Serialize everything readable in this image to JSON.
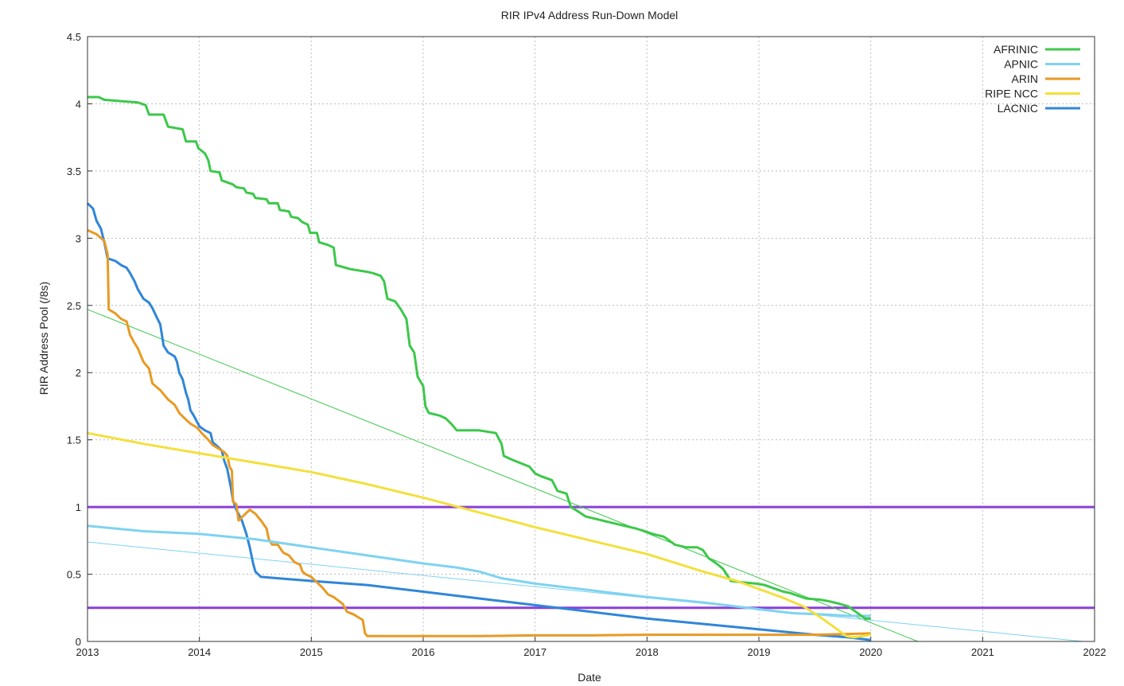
{
  "chart_data": {
    "type": "line",
    "title": "RIR IPv4 Address Run-Down Model",
    "xlabel": "Date",
    "ylabel": "RIR Address Pool (/8s)",
    "xlim": [
      2013,
      2022
    ],
    "ylim": [
      0,
      4.5
    ],
    "x_ticks": [
      "2013",
      "2014",
      "2015",
      "2016",
      "2017",
      "2018",
      "2019",
      "2020",
      "2021",
      "2022"
    ],
    "y_ticks": [
      "0",
      "0.5",
      "1",
      "1.5",
      "2",
      "2.5",
      "3",
      "3.5",
      "4",
      "4.5"
    ],
    "grid": true,
    "legend_position": "top-right",
    "series": [
      {
        "name": "AFRINIC",
        "color": "#3cc84a",
        "points": [
          [
            2013.0,
            4.05
          ],
          [
            2013.1,
            4.05
          ],
          [
            2013.15,
            4.03
          ],
          [
            2013.3,
            4.02
          ],
          [
            2013.45,
            4.01
          ],
          [
            2013.52,
            3.99
          ],
          [
            2013.55,
            3.92
          ],
          [
            2013.68,
            3.92
          ],
          [
            2013.72,
            3.83
          ],
          [
            2013.85,
            3.81
          ],
          [
            2013.88,
            3.72
          ],
          [
            2013.97,
            3.72
          ],
          [
            2013.99,
            3.67
          ],
          [
            2014.05,
            3.63
          ],
          [
            2014.08,
            3.58
          ],
          [
            2014.1,
            3.5
          ],
          [
            2014.18,
            3.49
          ],
          [
            2014.2,
            3.43
          ],
          [
            2014.3,
            3.4
          ],
          [
            2014.33,
            3.38
          ],
          [
            2014.4,
            3.37
          ],
          [
            2014.42,
            3.34
          ],
          [
            2014.48,
            3.33
          ],
          [
            2014.5,
            3.3
          ],
          [
            2014.6,
            3.29
          ],
          [
            2014.62,
            3.26
          ],
          [
            2014.7,
            3.26
          ],
          [
            2014.72,
            3.21
          ],
          [
            2014.8,
            3.2
          ],
          [
            2014.82,
            3.16
          ],
          [
            2014.88,
            3.15
          ],
          [
            2014.92,
            3.12
          ],
          [
            2014.97,
            3.1
          ],
          [
            2014.99,
            3.04
          ],
          [
            2015.05,
            3.04
          ],
          [
            2015.07,
            2.97
          ],
          [
            2015.15,
            2.95
          ],
          [
            2015.2,
            2.93
          ],
          [
            2015.22,
            2.8
          ],
          [
            2015.35,
            2.77
          ],
          [
            2015.5,
            2.75
          ],
          [
            2015.55,
            2.74
          ],
          [
            2015.62,
            2.72
          ],
          [
            2015.65,
            2.68
          ],
          [
            2015.68,
            2.55
          ],
          [
            2015.75,
            2.53
          ],
          [
            2015.8,
            2.47
          ],
          [
            2015.85,
            2.4
          ],
          [
            2015.88,
            2.2
          ],
          [
            2015.92,
            2.15
          ],
          [
            2015.95,
            1.97
          ],
          [
            2016.0,
            1.9
          ],
          [
            2016.02,
            1.75
          ],
          [
            2016.05,
            1.7
          ],
          [
            2016.15,
            1.68
          ],
          [
            2016.2,
            1.66
          ],
          [
            2016.25,
            1.62
          ],
          [
            2016.3,
            1.57
          ],
          [
            2016.5,
            1.57
          ],
          [
            2016.65,
            1.55
          ],
          [
            2016.7,
            1.47
          ],
          [
            2016.72,
            1.38
          ],
          [
            2016.8,
            1.35
          ],
          [
            2016.95,
            1.3
          ],
          [
            2017.0,
            1.25
          ],
          [
            2017.05,
            1.23
          ],
          [
            2017.15,
            1.2
          ],
          [
            2017.2,
            1.12
          ],
          [
            2017.28,
            1.1
          ],
          [
            2017.32,
            1.0
          ],
          [
            2017.38,
            0.97
          ],
          [
            2017.45,
            0.93
          ],
          [
            2017.55,
            0.91
          ],
          [
            2017.65,
            0.89
          ],
          [
            2017.75,
            0.87
          ],
          [
            2017.9,
            0.84
          ],
          [
            2017.98,
            0.82
          ],
          [
            2018.05,
            0.8
          ],
          [
            2018.15,
            0.78
          ],
          [
            2018.2,
            0.75
          ],
          [
            2018.25,
            0.72
          ],
          [
            2018.35,
            0.7
          ],
          [
            2018.45,
            0.7
          ],
          [
            2018.5,
            0.68
          ],
          [
            2018.55,
            0.62
          ],
          [
            2018.62,
            0.58
          ],
          [
            2018.68,
            0.54
          ],
          [
            2018.75,
            0.45
          ],
          [
            2018.85,
            0.44
          ],
          [
            2018.98,
            0.43
          ],
          [
            2019.05,
            0.42
          ],
          [
            2019.15,
            0.39
          ],
          [
            2019.22,
            0.37
          ],
          [
            2019.28,
            0.36
          ],
          [
            2019.35,
            0.34
          ],
          [
            2019.42,
            0.32
          ],
          [
            2019.55,
            0.31
          ],
          [
            2019.62,
            0.3
          ],
          [
            2019.72,
            0.28
          ],
          [
            2019.8,
            0.26
          ],
          [
            2019.85,
            0.23
          ],
          [
            2019.9,
            0.2
          ],
          [
            2019.95,
            0.17
          ],
          [
            2020.0,
            0.17
          ]
        ]
      },
      {
        "name": "APNIC",
        "color": "#7fd3f0",
        "points": [
          [
            2013.0,
            0.86
          ],
          [
            2013.5,
            0.82
          ],
          [
            2014.0,
            0.8
          ],
          [
            2014.5,
            0.76
          ],
          [
            2015.0,
            0.7
          ],
          [
            2015.5,
            0.64
          ],
          [
            2016.0,
            0.58
          ],
          [
            2016.3,
            0.55
          ],
          [
            2016.5,
            0.52
          ],
          [
            2016.7,
            0.47
          ],
          [
            2017.0,
            0.43
          ],
          [
            2017.5,
            0.38
          ],
          [
            2018.0,
            0.33
          ],
          [
            2018.5,
            0.29
          ],
          [
            2019.0,
            0.24
          ],
          [
            2019.3,
            0.21
          ],
          [
            2019.6,
            0.2
          ],
          [
            2019.8,
            0.19
          ],
          [
            2020.0,
            0.19
          ]
        ]
      },
      {
        "name": "ARIN",
        "color": "#e89a24",
        "points": [
          [
            2013.0,
            3.06
          ],
          [
            2013.08,
            3.03
          ],
          [
            2013.15,
            2.98
          ],
          [
            2013.18,
            2.88
          ],
          [
            2013.19,
            2.47
          ],
          [
            2013.25,
            2.44
          ],
          [
            2013.3,
            2.4
          ],
          [
            2013.35,
            2.38
          ],
          [
            2013.38,
            2.28
          ],
          [
            2013.42,
            2.22
          ],
          [
            2013.45,
            2.18
          ],
          [
            2013.5,
            2.08
          ],
          [
            2013.55,
            2.03
          ],
          [
            2013.58,
            1.92
          ],
          [
            2013.65,
            1.87
          ],
          [
            2013.72,
            1.8
          ],
          [
            2013.78,
            1.76
          ],
          [
            2013.82,
            1.7
          ],
          [
            2013.88,
            1.65
          ],
          [
            2013.92,
            1.62
          ],
          [
            2013.98,
            1.59
          ],
          [
            2014.02,
            1.55
          ],
          [
            2014.08,
            1.5
          ],
          [
            2014.12,
            1.46
          ],
          [
            2014.18,
            1.43
          ],
          [
            2014.22,
            1.41
          ],
          [
            2014.25,
            1.38
          ],
          [
            2014.27,
            1.3
          ],
          [
            2014.29,
            1.27
          ],
          [
            2014.3,
            1.04
          ],
          [
            2014.33,
            1.02
          ],
          [
            2014.35,
            0.9
          ],
          [
            2014.4,
            0.94
          ],
          [
            2014.45,
            0.98
          ],
          [
            2014.5,
            0.95
          ],
          [
            2014.55,
            0.9
          ],
          [
            2014.6,
            0.84
          ],
          [
            2014.62,
            0.76
          ],
          [
            2014.65,
            0.72
          ],
          [
            2014.7,
            0.72
          ],
          [
            2014.75,
            0.66
          ],
          [
            2014.8,
            0.64
          ],
          [
            2014.85,
            0.59
          ],
          [
            2014.9,
            0.57
          ],
          [
            2014.92,
            0.52
          ],
          [
            2014.95,
            0.5
          ],
          [
            2015.0,
            0.48
          ],
          [
            2015.05,
            0.44
          ],
          [
            2015.1,
            0.4
          ],
          [
            2015.15,
            0.35
          ],
          [
            2015.2,
            0.33
          ],
          [
            2015.28,
            0.28
          ],
          [
            2015.32,
            0.22
          ],
          [
            2015.38,
            0.2
          ],
          [
            2015.42,
            0.18
          ],
          [
            2015.46,
            0.16
          ],
          [
            2015.48,
            0.06
          ],
          [
            2015.5,
            0.04
          ],
          [
            2016.0,
            0.04
          ],
          [
            2016.5,
            0.04
          ],
          [
            2017.0,
            0.045
          ],
          [
            2017.5,
            0.045
          ],
          [
            2018.0,
            0.05
          ],
          [
            2018.5,
            0.05
          ],
          [
            2019.0,
            0.05
          ],
          [
            2019.5,
            0.05
          ],
          [
            2020.0,
            0.06
          ]
        ]
      },
      {
        "name": "RIPE NCC",
        "color": "#f2e03c",
        "points": [
          [
            2013.0,
            1.55
          ],
          [
            2013.5,
            1.47
          ],
          [
            2014.0,
            1.4
          ],
          [
            2014.5,
            1.33
          ],
          [
            2015.0,
            1.26
          ],
          [
            2015.5,
            1.17
          ],
          [
            2016.0,
            1.07
          ],
          [
            2016.5,
            0.96
          ],
          [
            2017.0,
            0.85
          ],
          [
            2017.5,
            0.75
          ],
          [
            2018.0,
            0.65
          ],
          [
            2018.5,
            0.52
          ],
          [
            2018.8,
            0.45
          ],
          [
            2019.0,
            0.39
          ],
          [
            2019.2,
            0.33
          ],
          [
            2019.4,
            0.26
          ],
          [
            2019.55,
            0.18
          ],
          [
            2019.7,
            0.09
          ],
          [
            2019.78,
            0.04
          ],
          [
            2019.85,
            0.03
          ],
          [
            2020.0,
            0.05
          ]
        ]
      },
      {
        "name": "LACNIC",
        "color": "#2f86d8",
        "points": [
          [
            2013.0,
            3.26
          ],
          [
            2013.05,
            3.22
          ],
          [
            2013.08,
            3.13
          ],
          [
            2013.12,
            3.07
          ],
          [
            2013.15,
            2.97
          ],
          [
            2013.18,
            2.85
          ],
          [
            2013.25,
            2.83
          ],
          [
            2013.3,
            2.8
          ],
          [
            2013.35,
            2.78
          ],
          [
            2013.38,
            2.74
          ],
          [
            2013.42,
            2.68
          ],
          [
            2013.45,
            2.62
          ],
          [
            2013.5,
            2.55
          ],
          [
            2013.55,
            2.52
          ],
          [
            2013.58,
            2.48
          ],
          [
            2013.62,
            2.41
          ],
          [
            2013.65,
            2.36
          ],
          [
            2013.68,
            2.2
          ],
          [
            2013.72,
            2.15
          ],
          [
            2013.78,
            2.12
          ],
          [
            2013.8,
            2.08
          ],
          [
            2013.82,
            2.0
          ],
          [
            2013.85,
            1.95
          ],
          [
            2013.88,
            1.85
          ],
          [
            2013.9,
            1.8
          ],
          [
            2013.92,
            1.72
          ],
          [
            2013.95,
            1.68
          ],
          [
            2014.0,
            1.6
          ],
          [
            2014.05,
            1.57
          ],
          [
            2014.1,
            1.55
          ],
          [
            2014.12,
            1.48
          ],
          [
            2014.15,
            1.46
          ],
          [
            2014.2,
            1.42
          ],
          [
            2014.22,
            1.35
          ],
          [
            2014.25,
            1.28
          ],
          [
            2014.28,
            1.15
          ],
          [
            2014.3,
            1.05
          ],
          [
            2014.33,
            0.98
          ],
          [
            2014.38,
            0.9
          ],
          [
            2014.42,
            0.8
          ],
          [
            2014.45,
            0.7
          ],
          [
            2014.48,
            0.58
          ],
          [
            2014.5,
            0.52
          ],
          [
            2014.55,
            0.48
          ],
          [
            2014.7,
            0.47
          ],
          [
            2015.0,
            0.45
          ],
          [
            2015.5,
            0.42
          ],
          [
            2016.0,
            0.37
          ],
          [
            2016.5,
            0.32
          ],
          [
            2017.0,
            0.27
          ],
          [
            2017.5,
            0.22
          ],
          [
            2018.0,
            0.17
          ],
          [
            2018.5,
            0.13
          ],
          [
            2019.0,
            0.09
          ],
          [
            2019.5,
            0.05
          ],
          [
            2019.8,
            0.03
          ],
          [
            2020.0,
            0.01
          ]
        ]
      }
    ],
    "trend_lines": [
      {
        "color": "#3cc84a",
        "points": [
          [
            2013.0,
            2.47
          ],
          [
            2020.42,
            0.0
          ]
        ]
      },
      {
        "color": "#7fd3f0",
        "points": [
          [
            2013.0,
            0.74
          ],
          [
            2021.9,
            0.0
          ]
        ]
      }
    ],
    "reference_lines": [
      {
        "color": "#8a3fd8",
        "y": 1.0
      },
      {
        "color": "#8a3fd8",
        "y": 0.25
      }
    ]
  }
}
